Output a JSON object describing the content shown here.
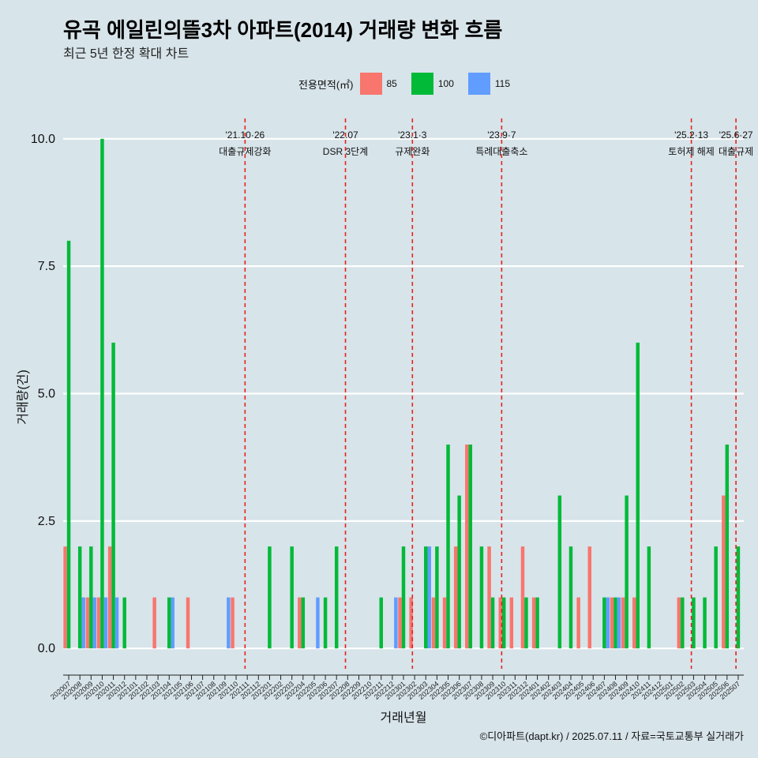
{
  "title": "유곡 에일린의뜰3차 아파트(2014) 거래량 변화 흐름",
  "subtitle": "최근 5년 한정 확대 차트",
  "caption": "©디아파트(dapt.kr) / 2025.07.11 / 자료=국토교통부 실거래가",
  "legend": {
    "title": "전용면적(㎡)",
    "items": [
      {
        "label": "85",
        "color": "#f8766d"
      },
      {
        "label": "100",
        "color": "#00ba38"
      },
      {
        "label": "115",
        "color": "#619cff"
      }
    ]
  },
  "chart_data": {
    "type": "bar",
    "xlabel": "거래년월",
    "ylabel": "거래량(건)",
    "ylim": [
      -0.4,
      10.4
    ],
    "yticks": [
      "0.0",
      "2.5",
      "5.0",
      "7.5",
      "10.0"
    ],
    "ytick_values": [
      0,
      2.5,
      5,
      7.5,
      10
    ],
    "categories": [
      "202007",
      "202008",
      "202009",
      "202010",
      "202011",
      "202012",
      "202101",
      "202102",
      "202103",
      "202104",
      "202105",
      "202106",
      "202107",
      "202108",
      "202109",
      "202110",
      "202111",
      "202112",
      "202201",
      "202202",
      "202203",
      "202204",
      "202205",
      "202206",
      "202207",
      "202208",
      "202209",
      "202210",
      "202211",
      "202212",
      "202301",
      "202302",
      "202303",
      "202304",
      "202305",
      "202306",
      "202307",
      "202308",
      "202309",
      "202310",
      "202311",
      "202312",
      "202401",
      "202402",
      "202403",
      "202404",
      "202405",
      "202406",
      "202407",
      "202408",
      "202409",
      "202410",
      "202411",
      "202412",
      "202501",
      "202502",
      "202503",
      "202504",
      "202505",
      "202506",
      "202507"
    ],
    "series": [
      {
        "name": "85",
        "color": "#f8766d",
        "values": [
          2,
          0,
          1,
          1,
          2,
          0,
          0,
          0,
          1,
          0,
          0,
          1,
          0,
          0,
          0,
          1,
          0,
          0,
          0,
          0,
          0,
          1,
          0,
          0,
          0,
          0,
          0,
          0,
          0,
          0,
          1,
          1,
          0,
          1,
          1,
          2,
          4,
          0,
          2,
          1,
          1,
          2,
          1,
          0,
          0,
          0,
          1,
          2,
          0,
          1,
          1,
          1,
          0,
          0,
          0,
          1,
          0,
          0,
          0,
          3,
          0
        ]
      },
      {
        "name": "100",
        "color": "#00ba38",
        "values": [
          8,
          2,
          2,
          10,
          6,
          1,
          0,
          0,
          0,
          1,
          0,
          0,
          0,
          0,
          0,
          0,
          0,
          0,
          2,
          0,
          2,
          1,
          0,
          1,
          2,
          0,
          0,
          0,
          1,
          0,
          2,
          0,
          2,
          2,
          4,
          3,
          4,
          2,
          1,
          1,
          0,
          1,
          1,
          0,
          3,
          2,
          0,
          0,
          1,
          1,
          3,
          6,
          2,
          0,
          0,
          1,
          1,
          1,
          2,
          4,
          2
        ]
      },
      {
        "name": "115",
        "color": "#619cff",
        "values": [
          0,
          1,
          1,
          1,
          1,
          0,
          0,
          0,
          0,
          1,
          0,
          0,
          0,
          0,
          1,
          0,
          0,
          0,
          0,
          0,
          0,
          0,
          1,
          0,
          0,
          0,
          0,
          0,
          0,
          1,
          0,
          0,
          2,
          0,
          0,
          0,
          0,
          0,
          0,
          0,
          0,
          0,
          0,
          0,
          0,
          0,
          0,
          0,
          1,
          1,
          0,
          0,
          0,
          0,
          0,
          0,
          0,
          0,
          0,
          0,
          0
        ]
      }
    ],
    "events": [
      {
        "date": "'21.10·26",
        "label": "대출규제강화",
        "index": 15.8
      },
      {
        "date": "'22.07",
        "label": "DSR 3단계",
        "index": 24.8
      },
      {
        "date": "'23.1·3",
        "label": "규제완화",
        "index": 30.8
      },
      {
        "date": "'23.9·7",
        "label": "특례대출축소",
        "index": 38.8
      },
      {
        "date": "'25.2·13",
        "label": "토허제 해제",
        "index": 55.8
      },
      {
        "date": "'25.6·27",
        "label": "대출규제",
        "index": 59.8
      }
    ],
    "grid": true,
    "legend_position": "top"
  }
}
